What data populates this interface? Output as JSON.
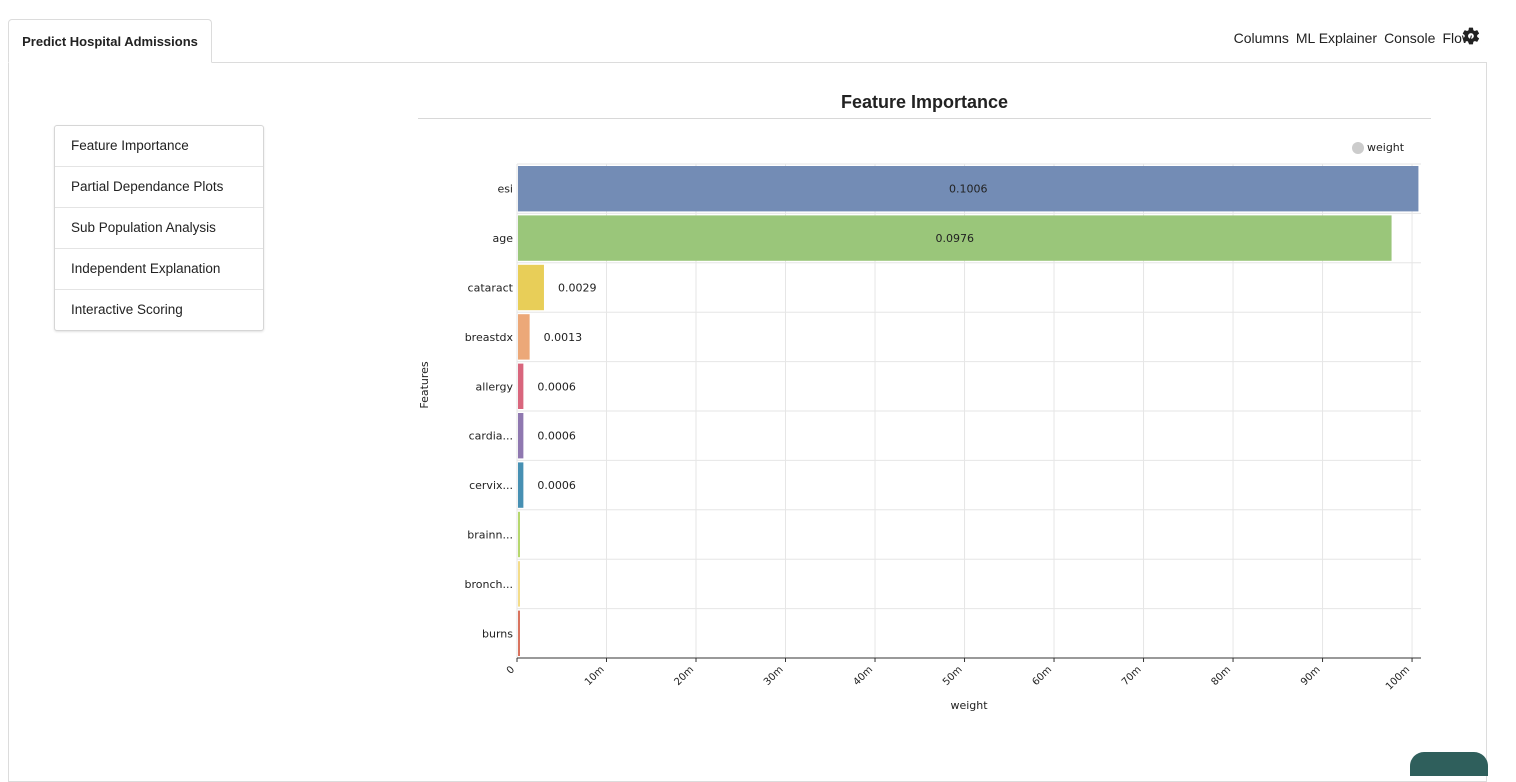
{
  "tab": {
    "label": "Predict Hospital Admissions"
  },
  "topnav": {
    "items": [
      "Columns",
      "ML Explainer",
      "Console",
      "Flow"
    ],
    "settings_icon": "gear-icon"
  },
  "sidebar": {
    "items": [
      {
        "label": "Feature Importance"
      },
      {
        "label": "Partial Dependance Plots"
      },
      {
        "label": "Sub Population Analysis"
      },
      {
        "label": "Independent Explanation"
      },
      {
        "label": "Interactive Scoring"
      }
    ]
  },
  "chart_data": {
    "type": "bar",
    "orientation": "horizontal",
    "title": "Feature Importance",
    "xlabel": "weight",
    "ylabel": "Features",
    "legend": {
      "label": "weight",
      "placement": "top-right"
    },
    "xlim": [
      0,
      0.101
    ],
    "xticks": [
      "0",
      "10m",
      "20m",
      "30m",
      "40m",
      "50m",
      "60m",
      "70m",
      "80m",
      "90m",
      "100m"
    ],
    "xtick_values": [
      0,
      0.01,
      0.02,
      0.03,
      0.04,
      0.05,
      0.06,
      0.07,
      0.08,
      0.09,
      0.1
    ],
    "grid": true,
    "categories": [
      "esi",
      "age",
      "cataract",
      "breastdx",
      "allergy",
      "cardia...",
      "cervix...",
      "brainn...",
      "bronch...",
      "burns"
    ],
    "values": [
      0.1006,
      0.0976,
      0.0029,
      0.0013,
      0.0006,
      0.0006,
      0.0006,
      0.0002,
      0.0002,
      0.0002
    ],
    "value_labels": [
      "0.1006",
      "0.0976",
      "0.0029",
      "0.0013",
      "0.0006",
      "0.0006",
      "0.0006",
      "",
      "",
      ""
    ],
    "colors": [
      "#738cb5",
      "#9ac67a",
      "#e8ce58",
      "#eca878",
      "#d9667d",
      "#8f78b0",
      "#4790b3",
      "#b6d76e",
      "#f3dc8a",
      "#d9735e"
    ]
  }
}
